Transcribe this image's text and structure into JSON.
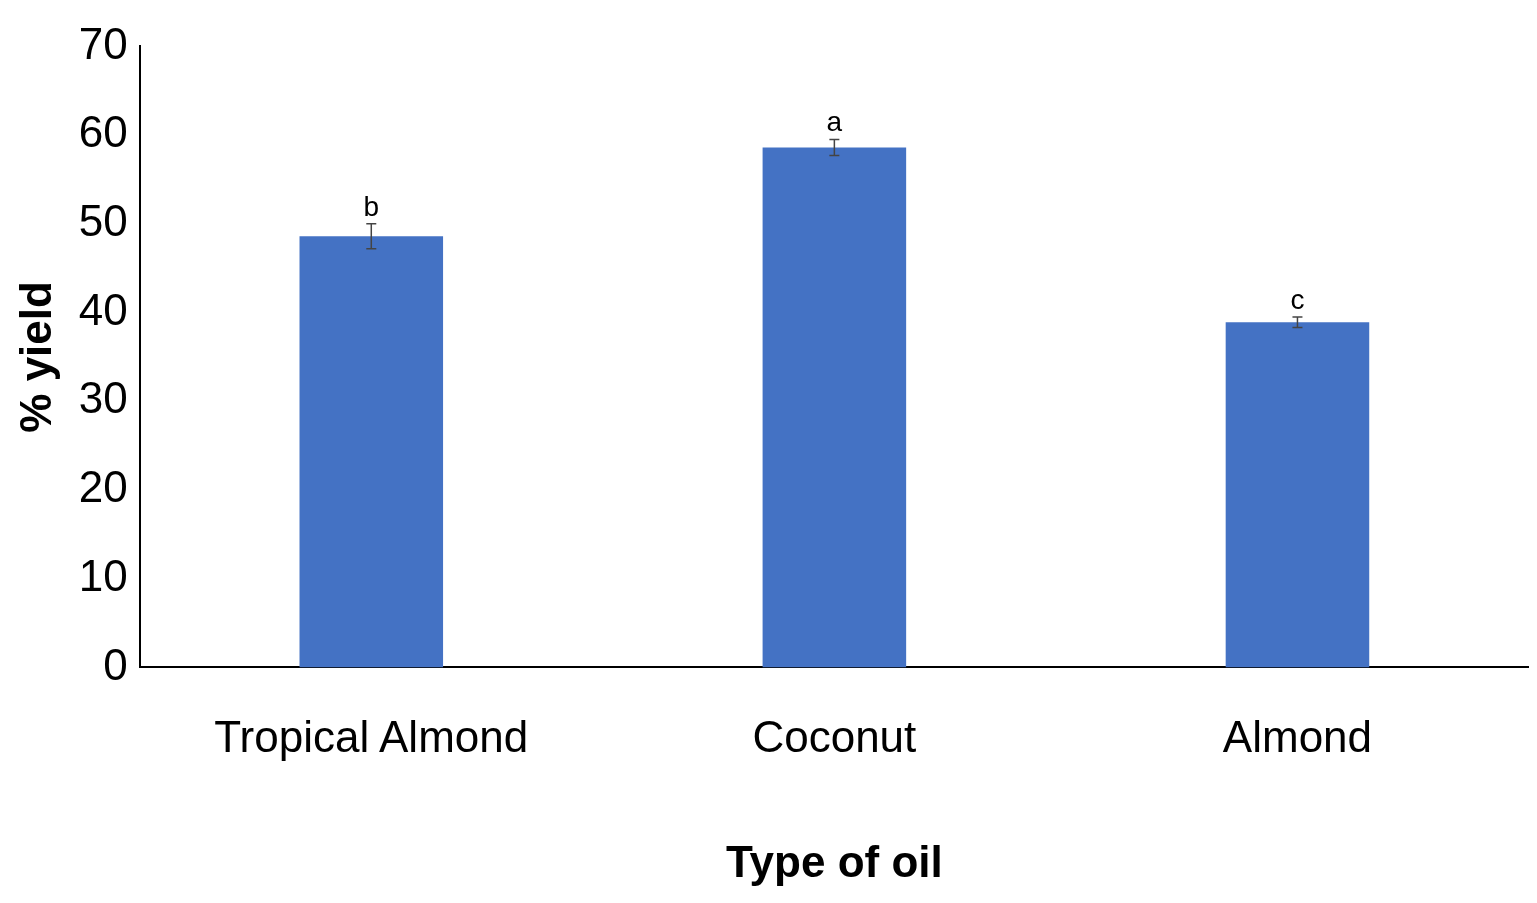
{
  "chart_data": {
    "type": "bar",
    "xlabel": "Type of oil",
    "ylabel": "% yield",
    "categories": [
      "Tropical Almond",
      "Coconut",
      "Almond"
    ],
    "values": [
      48.6,
      58.6,
      38.9
    ],
    "errors": [
      1.4,
      0.9,
      0.6
    ],
    "color": "#4472c4",
    "ylim": [
      0,
      70
    ],
    "yticks": [
      0,
      10,
      20,
      30,
      40,
      50,
      60,
      70
    ],
    "grid": false,
    "legend": false,
    "annotations": [
      {
        "text": "b",
        "x": "Tropical Almond",
        "y": 50.2
      },
      {
        "text": "a",
        "x": "Coconut",
        "y": 59.7
      },
      {
        "text": "c",
        "x": "Almond",
        "y": 39.7
      }
    ]
  }
}
